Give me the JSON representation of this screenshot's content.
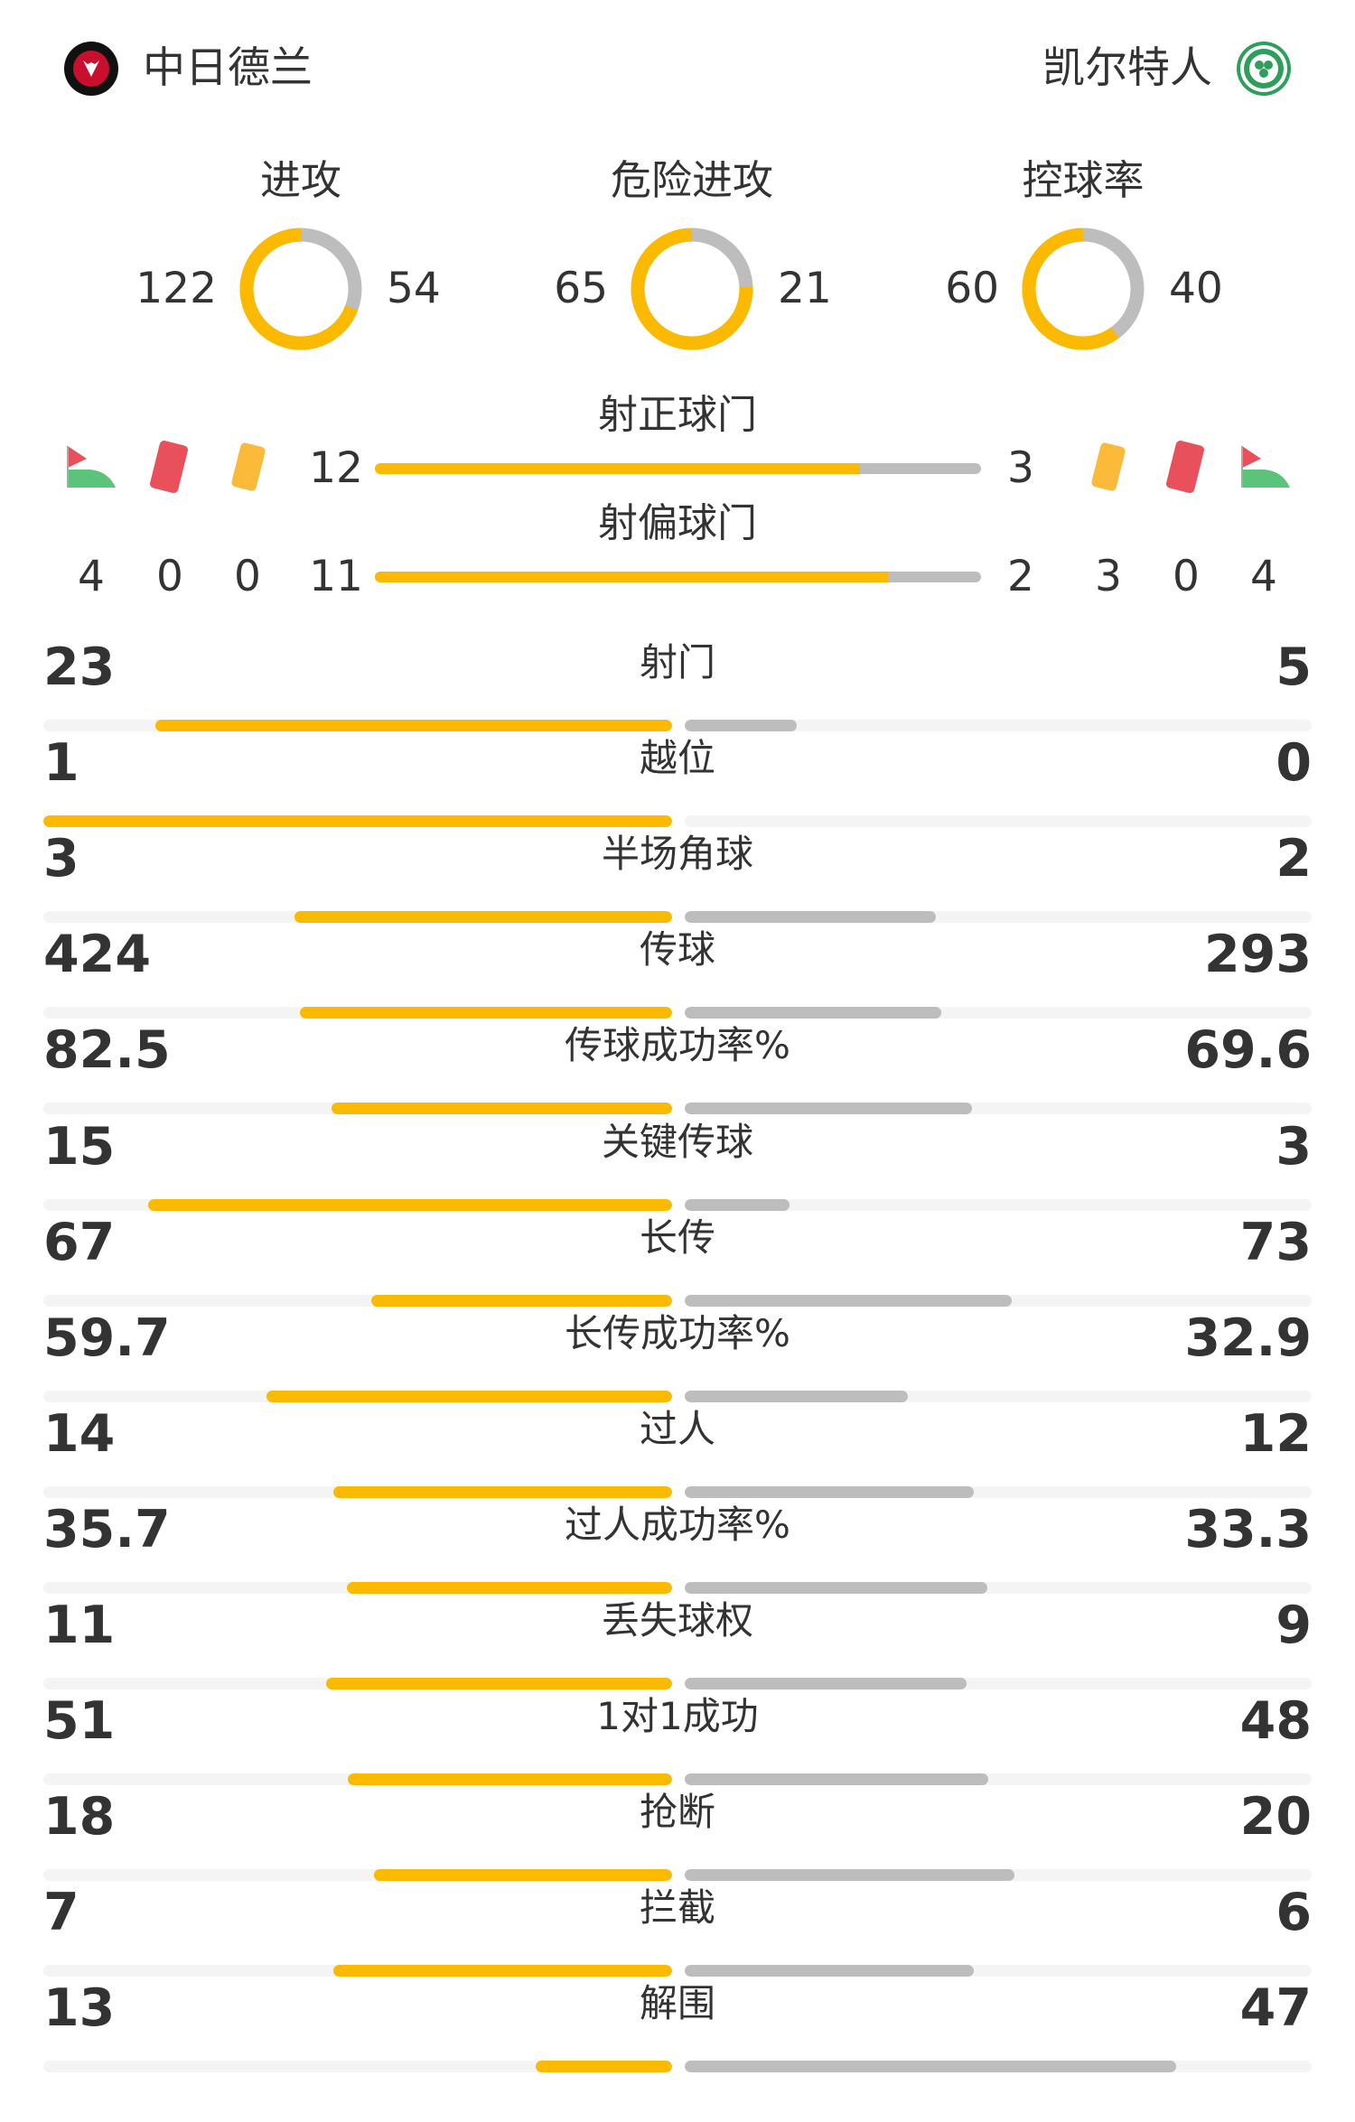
{
  "home": {
    "name": "中日德兰",
    "logo": "fc-midtjylland-logo",
    "color": "#FBBA00"
  },
  "away": {
    "name": "凯尔特人",
    "logo": "celtic-logo",
    "color": "#BDBDBD"
  },
  "donuts": [
    {
      "label": "进攻",
      "home": "122",
      "away": "54",
      "home_value": 122,
      "away_value": 54
    },
    {
      "label": "危险进攻",
      "home": "65",
      "away": "21",
      "home_value": 65,
      "away_value": 21
    },
    {
      "label": "控球率",
      "home": "60",
      "away": "40",
      "home_value": 60,
      "away_value": 40
    }
  ],
  "shots_on_target": {
    "label": "射正球门",
    "home": "12",
    "away": "3",
    "home_value": 12,
    "away_value": 3
  },
  "shots_off_target": {
    "label": "射偏球门",
    "home": "11",
    "away": "2",
    "home_value": 11,
    "away_value": 2
  },
  "events": {
    "icons": [
      "corner-flag-icon",
      "red-card-icon",
      "yellow-card-icon"
    ],
    "home": {
      "corners": "4",
      "red_cards": "0",
      "yellow_cards": "0"
    },
    "away": {
      "yellow_cards": "3",
      "red_cards": "0",
      "corners": "4"
    }
  },
  "stats": [
    {
      "label": "射门",
      "home": "23",
      "away": "5"
    },
    {
      "label": "越位",
      "home": "1",
      "away": "0"
    },
    {
      "label": "半场角球",
      "home": "3",
      "away": "2"
    },
    {
      "label": "传球",
      "home": "424",
      "away": "293"
    },
    {
      "label": "传球成功率%",
      "home": "82.5",
      "away": "69.6"
    },
    {
      "label": "关键传球",
      "home": "15",
      "away": "3"
    },
    {
      "label": "长传",
      "home": "67",
      "away": "73"
    },
    {
      "label": "长传成功率%",
      "home": "59.7",
      "away": "32.9"
    },
    {
      "label": "过人",
      "home": "14",
      "away": "12"
    },
    {
      "label": "过人成功率%",
      "home": "35.7",
      "away": "33.3"
    },
    {
      "label": "丢失球权",
      "home": "11",
      "away": "9"
    },
    {
      "label": "1对1成功",
      "home": "51",
      "away": "48"
    },
    {
      "label": "抢断",
      "home": "18",
      "away": "20"
    },
    {
      "label": "拦截",
      "home": "7",
      "away": "6"
    },
    {
      "label": "解围",
      "home": "13",
      "away": "47"
    }
  ]
}
